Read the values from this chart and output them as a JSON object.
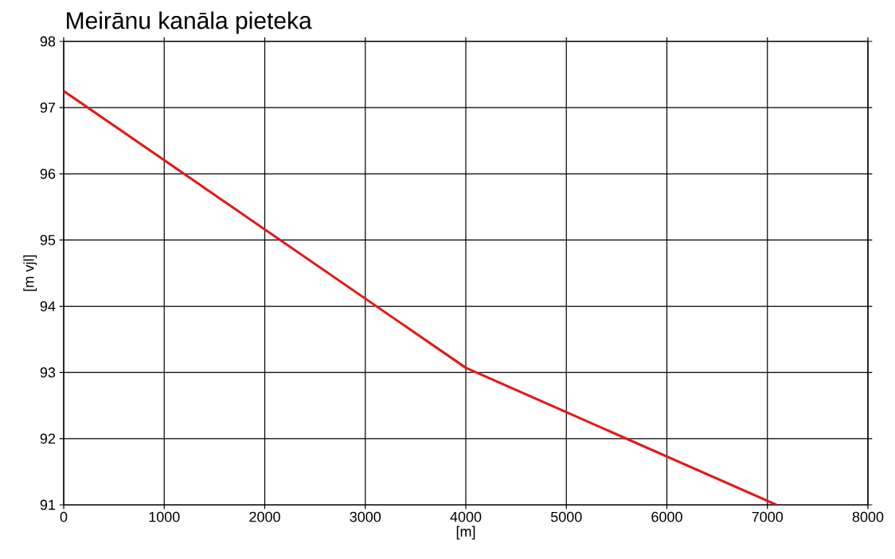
{
  "chart_data": {
    "type": "line",
    "title": "Meirānu kanāla pieteka",
    "xlabel": "[m]",
    "ylabel": "[m vjl]",
    "x": [
      0,
      4000,
      7090
    ],
    "series": [
      {
        "color": "#e01b1b",
        "values": [
          97.25,
          93.07,
          91.0
        ]
      }
    ],
    "xlim": [
      0,
      8000
    ],
    "ylim": [
      91,
      98
    ],
    "xticks": [
      0,
      1000,
      2000,
      3000,
      4000,
      5000,
      6000,
      7000,
      8000
    ],
    "yticks": [
      91,
      92,
      93,
      94,
      95,
      96,
      97,
      98
    ],
    "grid": true,
    "marker": "none",
    "line_style": "solid"
  }
}
